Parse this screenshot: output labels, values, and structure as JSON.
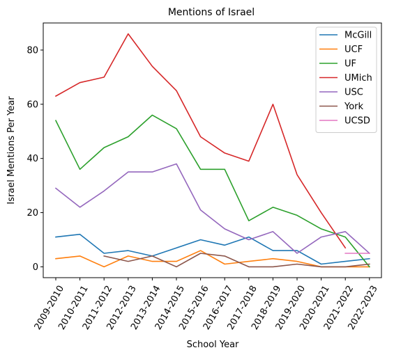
{
  "chart_data": {
    "type": "line",
    "title": "Mentions of Israel",
    "xlabel": "School Year",
    "ylabel": "Israel Mentions Per Year",
    "categories": [
      "2009-2010",
      "2010-2011",
      "2011-2012",
      "2012-2013",
      "2013-2014",
      "2014-2015",
      "2015-2016",
      "2016-2017",
      "2017-2018",
      "2018-2019",
      "2019-2020",
      "2020-2021",
      "2021-2022",
      "2022-2023"
    ],
    "ylim": [
      -4,
      90
    ],
    "yticks": [
      0,
      20,
      40,
      60,
      80
    ],
    "grid": false,
    "legend": "top-right",
    "series": [
      {
        "name": "McGill",
        "color": "#1f77b4",
        "values": [
          11,
          12,
          5,
          6,
          4,
          7,
          10,
          8,
          11,
          6,
          6,
          1,
          2,
          3
        ]
      },
      {
        "name": "UCF",
        "color": "#ff7f0e",
        "values": [
          3,
          4,
          0,
          4,
          2,
          2,
          6,
          1,
          2,
          3,
          2,
          0,
          0,
          0
        ]
      },
      {
        "name": "UF",
        "color": "#2ca02c",
        "values": [
          54,
          36,
          44,
          48,
          56,
          51,
          36,
          36,
          17,
          22,
          19,
          14,
          11,
          0
        ]
      },
      {
        "name": "UMich",
        "color": "#d62728",
        "values": [
          63,
          68,
          70,
          86,
          74,
          65,
          48,
          42,
          39,
          60,
          34,
          20,
          7,
          null
        ]
      },
      {
        "name": "USC",
        "color": "#9467bd",
        "values": [
          29,
          22,
          28,
          35,
          35,
          38,
          21,
          14,
          10,
          13,
          5,
          11,
          13,
          5
        ]
      },
      {
        "name": "York",
        "color": "#8c564b",
        "values": [
          null,
          null,
          4,
          2,
          4,
          0,
          5,
          4,
          0,
          0,
          1,
          0,
          0,
          1
        ]
      },
      {
        "name": "UCSD",
        "color": "#e377c2",
        "values": [
          null,
          null,
          null,
          null,
          null,
          null,
          null,
          null,
          null,
          null,
          null,
          null,
          5,
          5
        ]
      }
    ]
  }
}
